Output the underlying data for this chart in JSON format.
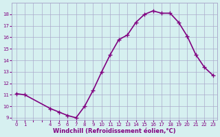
{
  "x": [
    0,
    1,
    4,
    5,
    6,
    7,
    8,
    9,
    10,
    11,
    12,
    13,
    14,
    15,
    16,
    17,
    18,
    19,
    20,
    21,
    22,
    23
  ],
  "y": [
    11.1,
    11.0,
    9.8,
    9.5,
    9.2,
    9.0,
    10.0,
    11.4,
    13.0,
    14.5,
    15.8,
    16.2,
    17.3,
    18.0,
    18.3,
    18.1,
    18.1,
    17.3,
    16.1,
    14.5,
    13.4,
    12.7
  ],
  "line_color": "#800080",
  "marker": "+",
  "marker_size": 5,
  "bg_color": "#d6f0f0",
  "grid_color": "#aaaacc",
  "xlabel": "Windchill (Refroidissement éolien,°C)",
  "xlabel_color": "#800080",
  "tick_color": "#800080",
  "xlim": [
    -0.5,
    23.5
  ],
  "ylim": [
    8.8,
    19.0
  ],
  "yticks": [
    9,
    10,
    11,
    12,
    13,
    14,
    15,
    16,
    17,
    18
  ],
  "xticks": [
    0,
    1,
    2,
    3,
    4,
    5,
    6,
    7,
    8,
    9,
    10,
    11,
    12,
    13,
    14,
    15,
    16,
    17,
    18,
    19,
    20,
    21,
    22,
    23
  ],
  "xtick_labels": [
    "0",
    "1",
    "",
    "",
    "4",
    "5",
    "6",
    "7",
    "8",
    "9",
    "10",
    "11",
    "12",
    "13",
    "14",
    "15",
    "16",
    "17",
    "18",
    "19",
    "20",
    "21",
    "22",
    "23"
  ],
  "linewidth": 1.2
}
